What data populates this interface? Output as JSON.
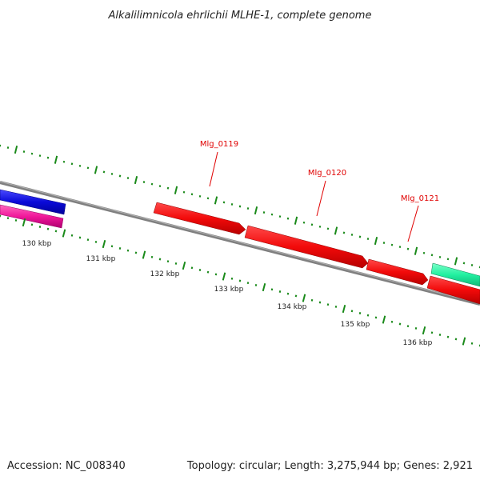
{
  "title": "Alkalilimnicola ehrlichii MLHE-1, complete genome",
  "footer": {
    "accession": "Accession: NC_008340",
    "summary": "Topology: circular; Length: 3,275,944 bp; Genes: 2,921"
  },
  "scale": {
    "tick_labels": [
      "130 kbp",
      "131 kbp",
      "132 kbp",
      "133 kbp",
      "134 kbp",
      "135 kbp",
      "136 kbp"
    ]
  },
  "genes": [
    {
      "label": "",
      "color": "#0a0ad8",
      "strand": "reverse"
    },
    {
      "label": "",
      "color": "#f0189a",
      "strand": "reverse"
    },
    {
      "label": "Mlg_0119",
      "color": "#f20a0a",
      "strand": "forward"
    },
    {
      "label": "Mlg_0120",
      "color": "#f20a0a",
      "strand": "forward"
    },
    {
      "label": "Mlg_0121",
      "color": "#f20a0a",
      "strand": "forward"
    },
    {
      "label": "",
      "color": "#f20a0a",
      "strand": "forward"
    },
    {
      "label": "",
      "color": "#22f0a0",
      "strand": "forward"
    }
  ],
  "colors": {
    "backbone": "#808080",
    "ticks": "#1a8a1a",
    "label_line": "#e00000"
  }
}
